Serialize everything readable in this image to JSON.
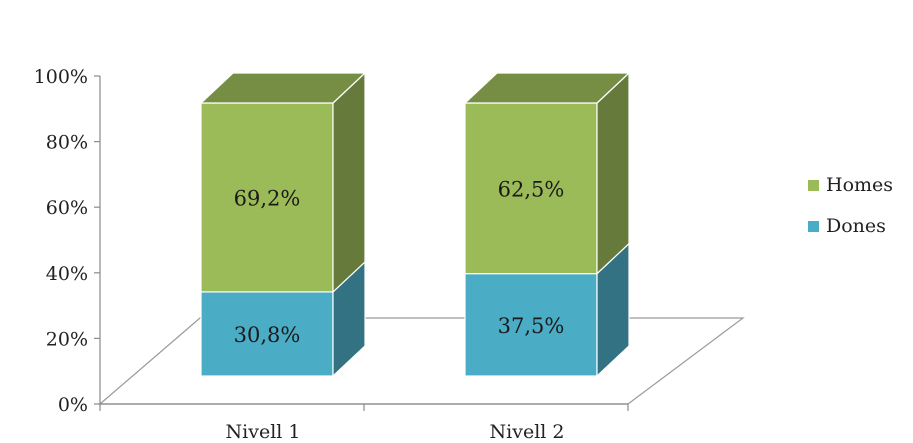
{
  "chart_data": {
    "type": "bar",
    "stacked": true,
    "percent_stacked": true,
    "three_d": true,
    "categories": [
      "Nivell 1",
      "Nivell 2"
    ],
    "series": [
      {
        "name": "Dones",
        "values": [
          30.8,
          37.5
        ],
        "labels": [
          "30,8%",
          "37,5%"
        ],
        "color": "#4bacc6"
      },
      {
        "name": "Homes",
        "values": [
          69.2,
          62.5
        ],
        "labels": [
          "69,2%",
          "62,5%"
        ],
        "color": "#9bbb59"
      }
    ],
    "y_ticks": [
      "0%",
      "20%",
      "40%",
      "60%",
      "80%",
      "100%"
    ],
    "ylim": [
      0,
      100
    ],
    "title": "",
    "xlabel": "",
    "ylabel": "",
    "grid": false,
    "legend_position": "right",
    "legend_order": [
      "Homes",
      "Dones"
    ]
  }
}
